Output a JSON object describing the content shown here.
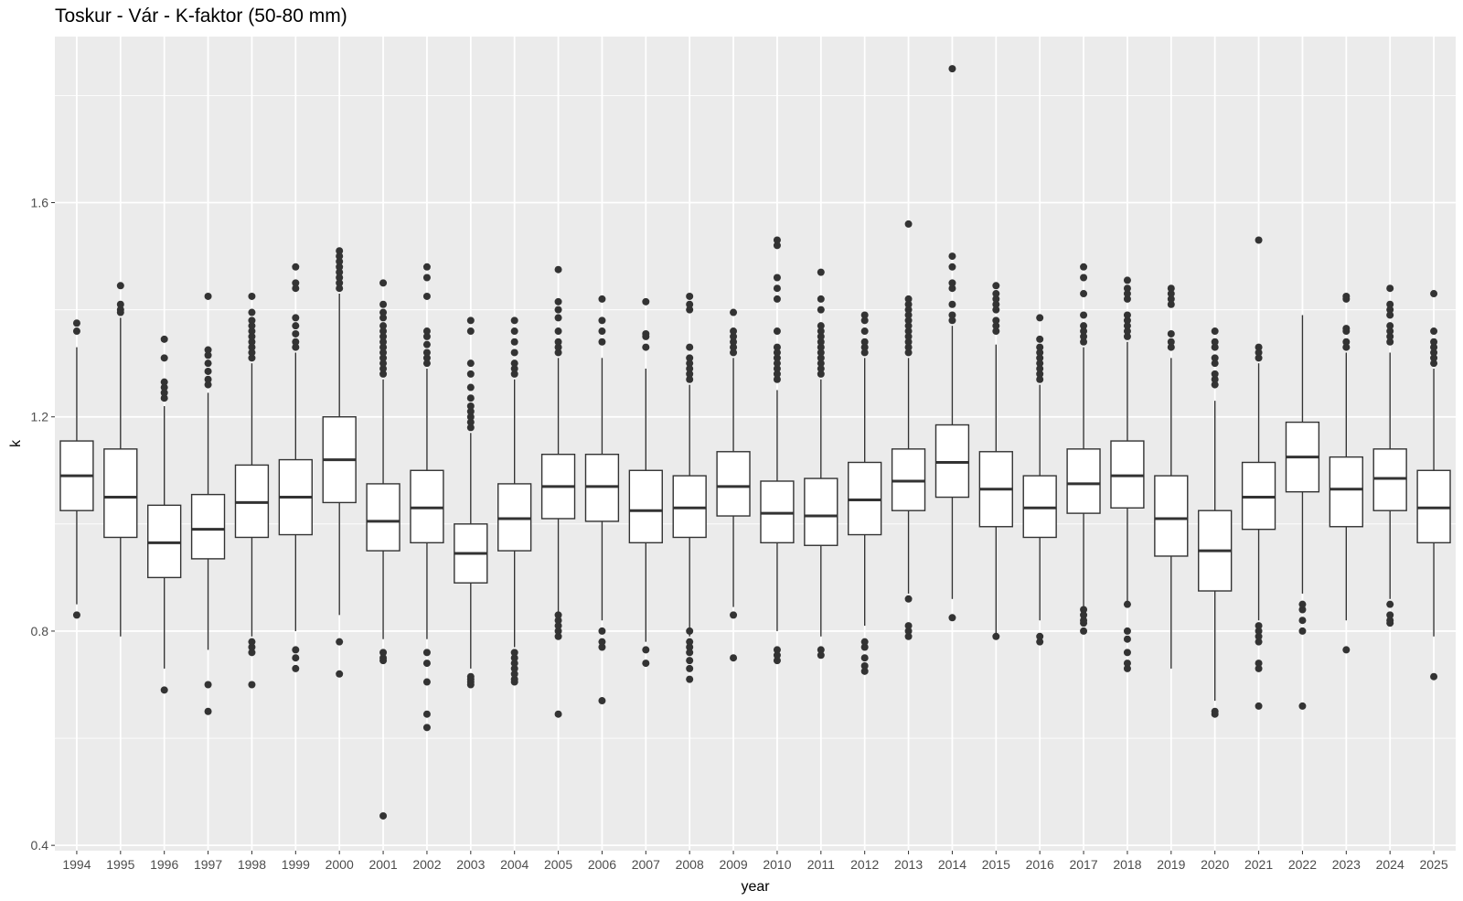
{
  "chart_data": {
    "type": "boxplot",
    "title": "Toskur - Vár - K-faktor (50-80 mm)",
    "xlabel": "year",
    "ylabel": "k",
    "ylim": [
      0.39,
      1.91
    ],
    "yticks": [
      0.4,
      0.8,
      1.2,
      1.6
    ],
    "grid": true,
    "colors": {
      "panel_background": "#ebebeb",
      "grid": "#ffffff",
      "box_fill": "#ffffff",
      "box_line": "#333333",
      "outlier": "#333333",
      "tick_label": "#4d4d4d"
    },
    "boxes": [
      {
        "year": "1994",
        "lower_whisker": 0.85,
        "q1": 1.025,
        "median": 1.09,
        "q3": 1.155,
        "upper_whisker": 1.33,
        "outliers": [
          0.83,
          1.36,
          1.375
        ]
      },
      {
        "year": "1995",
        "lower_whisker": 0.79,
        "q1": 0.975,
        "median": 1.05,
        "q3": 1.14,
        "upper_whisker": 1.385,
        "outliers": [
          1.395,
          1.4,
          1.41,
          1.445
        ]
      },
      {
        "year": "1996",
        "lower_whisker": 0.73,
        "q1": 0.9,
        "median": 0.965,
        "q3": 1.035,
        "upper_whisker": 1.22,
        "outliers": [
          0.69,
          1.235,
          1.245,
          1.255,
          1.265,
          1.31,
          1.345
        ]
      },
      {
        "year": "1997",
        "lower_whisker": 0.765,
        "q1": 0.935,
        "median": 0.99,
        "q3": 1.055,
        "upper_whisker": 1.245,
        "outliers": [
          0.65,
          0.7,
          1.26,
          1.27,
          1.285,
          1.3,
          1.315,
          1.325,
          1.425
        ]
      },
      {
        "year": "1998",
        "lower_whisker": 0.79,
        "q1": 0.975,
        "median": 1.04,
        "q3": 1.11,
        "upper_whisker": 1.3,
        "outliers": [
          0.7,
          0.76,
          0.77,
          0.78,
          1.31,
          1.32,
          1.33,
          1.34,
          1.35,
          1.36,
          1.37,
          1.38,
          1.395,
          1.425
        ]
      },
      {
        "year": "1999",
        "lower_whisker": 0.8,
        "q1": 0.98,
        "median": 1.05,
        "q3": 1.12,
        "upper_whisker": 1.32,
        "outliers": [
          0.73,
          0.75,
          0.765,
          1.33,
          1.34,
          1.355,
          1.37,
          1.385,
          1.44,
          1.45,
          1.48
        ]
      },
      {
        "year": "2000",
        "lower_whisker": 0.83,
        "q1": 1.04,
        "median": 1.12,
        "q3": 1.2,
        "upper_whisker": 1.43,
        "outliers": [
          0.72,
          0.78,
          1.44,
          1.45,
          1.46,
          1.47,
          1.48,
          1.49,
          1.5,
          1.51
        ]
      },
      {
        "year": "2001",
        "lower_whisker": 0.785,
        "q1": 0.95,
        "median": 1.005,
        "q3": 1.075,
        "upper_whisker": 1.27,
        "outliers": [
          0.455,
          0.745,
          0.75,
          0.76,
          1.28,
          1.29,
          1.3,
          1.31,
          1.32,
          1.33,
          1.34,
          1.35,
          1.36,
          1.37,
          1.385,
          1.395,
          1.41,
          1.45
        ]
      },
      {
        "year": "2002",
        "lower_whisker": 0.785,
        "q1": 0.965,
        "median": 1.03,
        "q3": 1.1,
        "upper_whisker": 1.29,
        "outliers": [
          0.62,
          0.645,
          0.705,
          0.74,
          0.76,
          1.3,
          1.31,
          1.32,
          1.335,
          1.35,
          1.36,
          1.425,
          1.46,
          1.48
        ]
      },
      {
        "year": "2003",
        "lower_whisker": 0.73,
        "q1": 0.89,
        "median": 0.945,
        "q3": 1.0,
        "upper_whisker": 1.17,
        "outliers": [
          0.7,
          0.705,
          0.71,
          0.715,
          1.18,
          1.19,
          1.2,
          1.21,
          1.22,
          1.235,
          1.255,
          1.28,
          1.3,
          1.36,
          1.38
        ]
      },
      {
        "year": "2004",
        "lower_whisker": 0.77,
        "q1": 0.95,
        "median": 1.01,
        "q3": 1.075,
        "upper_whisker": 1.27,
        "outliers": [
          0.705,
          0.71,
          0.72,
          0.73,
          0.74,
          0.75,
          0.76,
          1.28,
          1.29,
          1.3,
          1.32,
          1.34,
          1.36,
          1.38
        ]
      },
      {
        "year": "2005",
        "lower_whisker": 0.835,
        "q1": 1.01,
        "median": 1.07,
        "q3": 1.13,
        "upper_whisker": 1.31,
        "outliers": [
          0.645,
          0.79,
          0.8,
          0.81,
          0.82,
          0.83,
          1.32,
          1.33,
          1.34,
          1.36,
          1.385,
          1.4,
          1.415,
          1.475
        ]
      },
      {
        "year": "2006",
        "lower_whisker": 0.82,
        "q1": 1.005,
        "median": 1.07,
        "q3": 1.13,
        "upper_whisker": 1.31,
        "outliers": [
          0.67,
          0.77,
          0.78,
          0.8,
          1.34,
          1.36,
          1.38,
          1.42
        ]
      },
      {
        "year": "2007",
        "lower_whisker": 0.78,
        "q1": 0.965,
        "median": 1.025,
        "q3": 1.1,
        "upper_whisker": 1.29,
        "outliers": [
          0.74,
          0.765,
          1.33,
          1.35,
          1.355,
          1.415
        ]
      },
      {
        "year": "2008",
        "lower_whisker": 0.79,
        "q1": 0.975,
        "median": 1.03,
        "q3": 1.09,
        "upper_whisker": 1.26,
        "outliers": [
          0.71,
          0.73,
          0.745,
          0.76,
          0.77,
          0.78,
          0.8,
          1.27,
          1.28,
          1.29,
          1.3,
          1.31,
          1.33,
          1.4,
          1.41,
          1.425
        ]
      },
      {
        "year": "2009",
        "lower_whisker": 0.845,
        "q1": 1.015,
        "median": 1.07,
        "q3": 1.135,
        "upper_whisker": 1.31,
        "outliers": [
          0.75,
          0.83,
          1.32,
          1.33,
          1.34,
          1.35,
          1.36,
          1.395
        ]
      },
      {
        "year": "2010",
        "lower_whisker": 0.8,
        "q1": 0.965,
        "median": 1.02,
        "q3": 1.08,
        "upper_whisker": 1.25,
        "outliers": [
          0.745,
          0.755,
          0.765,
          1.27,
          1.28,
          1.29,
          1.3,
          1.31,
          1.32,
          1.33,
          1.36,
          1.42,
          1.44,
          1.46,
          1.52,
          1.53
        ]
      },
      {
        "year": "2011",
        "lower_whisker": 0.79,
        "q1": 0.96,
        "median": 1.015,
        "q3": 1.085,
        "upper_whisker": 1.27,
        "outliers": [
          0.755,
          0.765,
          1.28,
          1.29,
          1.3,
          1.31,
          1.32,
          1.33,
          1.34,
          1.35,
          1.36,
          1.37,
          1.4,
          1.42,
          1.47
        ]
      },
      {
        "year": "2012",
        "lower_whisker": 0.81,
        "q1": 0.98,
        "median": 1.045,
        "q3": 1.115,
        "upper_whisker": 1.31,
        "outliers": [
          0.725,
          0.735,
          0.75,
          0.77,
          0.78,
          1.32,
          1.33,
          1.34,
          1.36,
          1.38,
          1.39
        ]
      },
      {
        "year": "2013",
        "lower_whisker": 0.87,
        "q1": 1.025,
        "median": 1.08,
        "q3": 1.14,
        "upper_whisker": 1.31,
        "outliers": [
          0.79,
          0.8,
          0.81,
          0.86,
          1.32,
          1.33,
          1.34,
          1.35,
          1.36,
          1.37,
          1.38,
          1.39,
          1.4,
          1.41,
          1.42,
          1.56
        ]
      },
      {
        "year": "2014",
        "lower_whisker": 0.86,
        "q1": 1.05,
        "median": 1.115,
        "q3": 1.185,
        "upper_whisker": 1.37,
        "outliers": [
          0.825,
          1.38,
          1.39,
          1.41,
          1.44,
          1.45,
          1.48,
          1.5,
          1.85
        ]
      },
      {
        "year": "2015",
        "lower_whisker": 0.79,
        "q1": 0.995,
        "median": 1.065,
        "q3": 1.135,
        "upper_whisker": 1.335,
        "outliers": [
          0.79,
          1.36,
          1.37,
          1.38,
          1.4,
          1.41,
          1.42,
          1.43,
          1.445
        ]
      },
      {
        "year": "2016",
        "lower_whisker": 0.82,
        "q1": 0.975,
        "median": 1.03,
        "q3": 1.09,
        "upper_whisker": 1.26,
        "outliers": [
          0.78,
          0.79,
          1.27,
          1.28,
          1.29,
          1.3,
          1.31,
          1.32,
          1.33,
          1.345,
          1.385
        ]
      },
      {
        "year": "2017",
        "lower_whisker": 0.84,
        "q1": 1.02,
        "median": 1.075,
        "q3": 1.14,
        "upper_whisker": 1.33,
        "outliers": [
          0.8,
          0.815,
          0.82,
          0.83,
          0.84,
          1.34,
          1.35,
          1.36,
          1.37,
          1.39,
          1.43,
          1.46,
          1.48
        ]
      },
      {
        "year": "2018",
        "lower_whisker": 0.845,
        "q1": 1.03,
        "median": 1.09,
        "q3": 1.155,
        "upper_whisker": 1.34,
        "outliers": [
          0.73,
          0.74,
          0.76,
          0.785,
          0.8,
          0.85,
          1.35,
          1.36,
          1.37,
          1.38,
          1.39,
          1.42,
          1.43,
          1.44,
          1.455
        ]
      },
      {
        "year": "2019",
        "lower_whisker": 0.73,
        "q1": 0.94,
        "median": 1.01,
        "q3": 1.09,
        "upper_whisker": 1.31,
        "outliers": [
          1.33,
          1.34,
          1.355,
          1.41,
          1.42,
          1.43,
          1.44
        ]
      },
      {
        "year": "2020",
        "lower_whisker": 0.67,
        "q1": 0.875,
        "median": 0.95,
        "q3": 1.025,
        "upper_whisker": 1.23,
        "outliers": [
          0.645,
          0.65,
          1.26,
          1.27,
          1.28,
          1.3,
          1.31,
          1.33,
          1.34,
          1.36
        ]
      },
      {
        "year": "2021",
        "lower_whisker": 0.82,
        "q1": 0.99,
        "median": 1.05,
        "q3": 1.115,
        "upper_whisker": 1.3,
        "outliers": [
          0.66,
          0.73,
          0.74,
          0.78,
          0.79,
          0.8,
          0.81,
          1.31,
          1.32,
          1.33,
          1.53
        ]
      },
      {
        "year": "2022",
        "lower_whisker": 0.87,
        "q1": 1.06,
        "median": 1.125,
        "q3": 1.19,
        "upper_whisker": 1.39,
        "outliers": [
          0.66,
          0.8,
          0.82,
          0.84,
          0.85
        ]
      },
      {
        "year": "2023",
        "lower_whisker": 0.82,
        "q1": 0.995,
        "median": 1.065,
        "q3": 1.125,
        "upper_whisker": 1.32,
        "outliers": [
          0.765,
          1.33,
          1.34,
          1.36,
          1.365,
          1.42,
          1.425
        ]
      },
      {
        "year": "2024",
        "lower_whisker": 0.86,
        "q1": 1.025,
        "median": 1.085,
        "q3": 1.14,
        "upper_whisker": 1.32,
        "outliers": [
          0.815,
          0.82,
          0.83,
          0.85,
          1.34,
          1.35,
          1.36,
          1.37,
          1.39,
          1.4,
          1.41,
          1.44
        ]
      },
      {
        "year": "2025",
        "lower_whisker": 0.79,
        "q1": 0.965,
        "median": 1.03,
        "q3": 1.1,
        "upper_whisker": 1.29,
        "outliers": [
          0.715,
          1.3,
          1.31,
          1.32,
          1.33,
          1.34,
          1.36,
          1.43
        ]
      }
    ]
  }
}
